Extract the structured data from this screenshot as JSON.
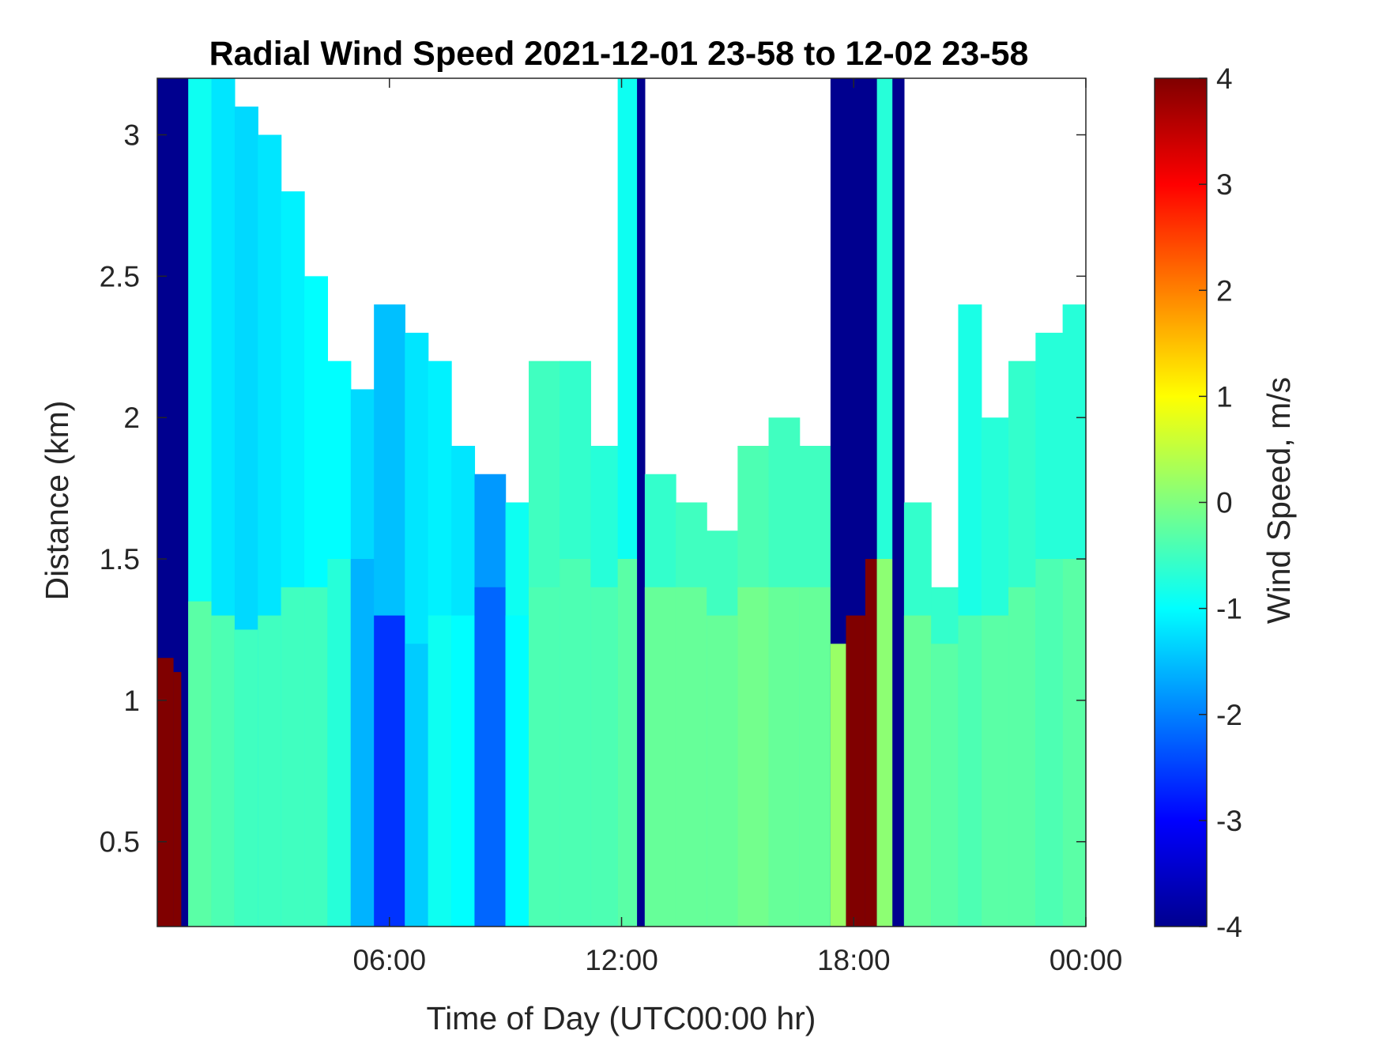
{
  "chart_data": {
    "type": "heatmap",
    "title": "Radial Wind Speed 2021-12-01 23-58 to 12-02 23-58",
    "xlabel": "Time of Day (UTC00:00 hr)",
    "ylabel": "Distance (km)",
    "colorbar_label": "Wind Speed, m/s",
    "colormap": "jet",
    "colormap_stops": [
      "#00008f",
      "#0000ff",
      "#0080ff",
      "#00ffff",
      "#80ff80",
      "#ffff00",
      "#ff8000",
      "#ff0000",
      "#800000"
    ],
    "xlim": [
      0,
      24
    ],
    "ylim": [
      0.2,
      3.2
    ],
    "clim": [
      -4,
      4
    ],
    "x_ticks": [
      6,
      12,
      18,
      24
    ],
    "x_tick_labels": [
      "06:00",
      "12:00",
      "18:00",
      "00:00"
    ],
    "y_ticks": [
      0.5,
      1,
      1.5,
      2,
      2.5,
      3
    ],
    "y_tick_labels": [
      "0.5",
      "1",
      "1.5",
      "2",
      "2.5",
      "3"
    ],
    "c_ticks": [
      -4,
      -3,
      -2,
      -1,
      0,
      1,
      2,
      3,
      4
    ],
    "c_tick_labels": [
      "-4",
      "-3",
      "-2",
      "-1",
      "0",
      "1",
      "2",
      "3",
      "4"
    ],
    "grid": false,
    "time_bins": [
      {
        "t0": 0.0,
        "t1": 0.42,
        "top_km": 3.2,
        "value": -4,
        "low_top_km": 1.15,
        "low_value": 4
      },
      {
        "t0": 0.42,
        "t1": 0.62,
        "top_km": 3.2,
        "value": -4,
        "low_top_km": 1.1,
        "low_value": 4
      },
      {
        "t0": 0.62,
        "t1": 0.8,
        "top_km": 3.2,
        "value": -4
      },
      {
        "t0": 0.8,
        "t1": 1.4,
        "top_km": 3.2,
        "value": -0.9,
        "low_top_km": 1.35,
        "low_value": -0.3
      },
      {
        "t0": 1.4,
        "t1": 2.0,
        "top_km": 3.2,
        "value": -1.2,
        "low_top_km": 1.3,
        "low_value": -0.4
      },
      {
        "t0": 2.0,
        "t1": 2.6,
        "top_km": 3.1,
        "value": -1.3,
        "low_top_km": 1.25,
        "low_value": -0.5
      },
      {
        "t0": 2.6,
        "t1": 3.2,
        "top_km": 3.0,
        "value": -1.2,
        "low_top_km": 1.3,
        "low_value": -0.5
      },
      {
        "t0": 3.2,
        "t1": 3.8,
        "top_km": 2.8,
        "value": -1.1,
        "low_top_km": 1.4,
        "low_value": -0.5
      },
      {
        "t0": 3.8,
        "t1": 4.4,
        "top_km": 2.5,
        "value": -1.0,
        "low_top_km": 1.4,
        "low_value": -0.5
      },
      {
        "t0": 4.4,
        "t1": 5.0,
        "top_km": 2.2,
        "value": -1.0,
        "low_top_km": 1.5,
        "low_value": -0.7
      },
      {
        "t0": 5.0,
        "t1": 5.6,
        "top_km": 2.1,
        "value": -1.3,
        "low_top_km": 1.5,
        "low_value": -1.6
      },
      {
        "t0": 5.6,
        "t1": 6.4,
        "top_km": 2.4,
        "value": -1.5,
        "low_top_km": 1.3,
        "low_value": -2.6
      },
      {
        "t0": 6.4,
        "t1": 7.0,
        "top_km": 2.3,
        "value": -1.2,
        "low_top_km": 1.2,
        "low_value": -1.4
      },
      {
        "t0": 7.0,
        "t1": 7.6,
        "top_km": 2.2,
        "value": -1.1,
        "low_top_km": 1.3,
        "low_value": -0.9
      },
      {
        "t0": 7.6,
        "t1": 8.2,
        "top_km": 1.9,
        "value": -1.2,
        "low_top_km": 1.3,
        "low_value": -1.0
      },
      {
        "t0": 8.2,
        "t1": 9.0,
        "top_km": 1.8,
        "value": -1.8,
        "low_top_km": 1.4,
        "low_value": -2.2
      },
      {
        "t0": 9.0,
        "t1": 9.6,
        "top_km": 1.7,
        "value": -0.9,
        "low_top_km": 1.3,
        "low_value": -1.0
      },
      {
        "t0": 9.6,
        "t1": 10.4,
        "top_km": 2.2,
        "value": -0.5,
        "low_top_km": 1.4,
        "low_value": -0.4
      },
      {
        "t0": 10.4,
        "t1": 11.2,
        "top_km": 2.2,
        "value": -0.6,
        "low_top_km": 1.5,
        "low_value": -0.4
      },
      {
        "t0": 11.2,
        "t1": 11.9,
        "top_km": 1.9,
        "value": -0.7,
        "low_top_km": 1.4,
        "low_value": -0.4
      },
      {
        "t0": 11.9,
        "t1": 12.4,
        "top_km": 3.2,
        "value": -0.9,
        "low_top_km": 1.5,
        "low_value": -0.3
      },
      {
        "t0": 12.4,
        "t1": 12.6,
        "top_km": 3.2,
        "value": -4
      },
      {
        "t0": 12.6,
        "t1": 13.4,
        "top_km": 1.8,
        "value": -0.6,
        "low_top_km": 1.4,
        "low_value": -0.2
      },
      {
        "t0": 13.4,
        "t1": 14.2,
        "top_km": 1.7,
        "value": -0.5,
        "low_top_km": 1.4,
        "low_value": -0.2
      },
      {
        "t0": 14.2,
        "t1": 15.0,
        "top_km": 1.6,
        "value": -0.5,
        "low_top_km": 1.3,
        "low_value": -0.2
      },
      {
        "t0": 15.0,
        "t1": 15.8,
        "top_km": 1.9,
        "value": -0.4,
        "low_top_km": 1.4,
        "low_value": -0.1
      },
      {
        "t0": 15.8,
        "t1": 16.6,
        "top_km": 2.0,
        "value": -0.5,
        "low_top_km": 1.4,
        "low_value": -0.2
      },
      {
        "t0": 16.6,
        "t1": 17.4,
        "top_km": 1.9,
        "value": -0.5,
        "low_top_km": 1.4,
        "low_value": -0.2
      },
      {
        "t0": 17.4,
        "t1": 17.8,
        "top_km": 3.2,
        "value": -4,
        "low_top_km": 1.2,
        "low_value": 0.2
      },
      {
        "t0": 17.8,
        "t1": 18.3,
        "top_km": 3.2,
        "value": -4,
        "low_top_km": 1.3,
        "low_value": 4
      },
      {
        "t0": 18.3,
        "t1": 18.6,
        "top_km": 3.2,
        "value": -4,
        "low_top_km": 1.5,
        "low_value": 4
      },
      {
        "t0": 18.6,
        "t1": 19.0,
        "top_km": 3.2,
        "value": -0.7,
        "low_top_km": 1.5,
        "low_value": 0.1
      },
      {
        "t0": 19.0,
        "t1": 19.3,
        "top_km": 3.2,
        "value": -4
      },
      {
        "t0": 19.3,
        "t1": 20.0,
        "top_km": 1.7,
        "value": -0.6,
        "low_top_km": 1.3,
        "low_value": -0.2
      },
      {
        "t0": 20.0,
        "t1": 20.7,
        "top_km": 1.4,
        "value": -0.6,
        "low_top_km": 1.2,
        "low_value": -0.3
      },
      {
        "t0": 20.7,
        "t1": 21.3,
        "top_km": 2.4,
        "value": -0.8,
        "low_top_km": 1.3,
        "low_value": -0.4
      },
      {
        "t0": 21.3,
        "t1": 22.0,
        "top_km": 2.0,
        "value": -0.7,
        "low_top_km": 1.3,
        "low_value": -0.3
      },
      {
        "t0": 22.0,
        "t1": 22.7,
        "top_km": 2.2,
        "value": -0.6,
        "low_top_km": 1.4,
        "low_value": -0.3
      },
      {
        "t0": 22.7,
        "t1": 23.4,
        "top_km": 2.3,
        "value": -0.7,
        "low_top_km": 1.5,
        "low_value": -0.4
      },
      {
        "t0": 23.4,
        "t1": 24.0,
        "top_km": 2.4,
        "value": -0.7,
        "low_top_km": 1.5,
        "low_value": -0.3
      }
    ]
  }
}
